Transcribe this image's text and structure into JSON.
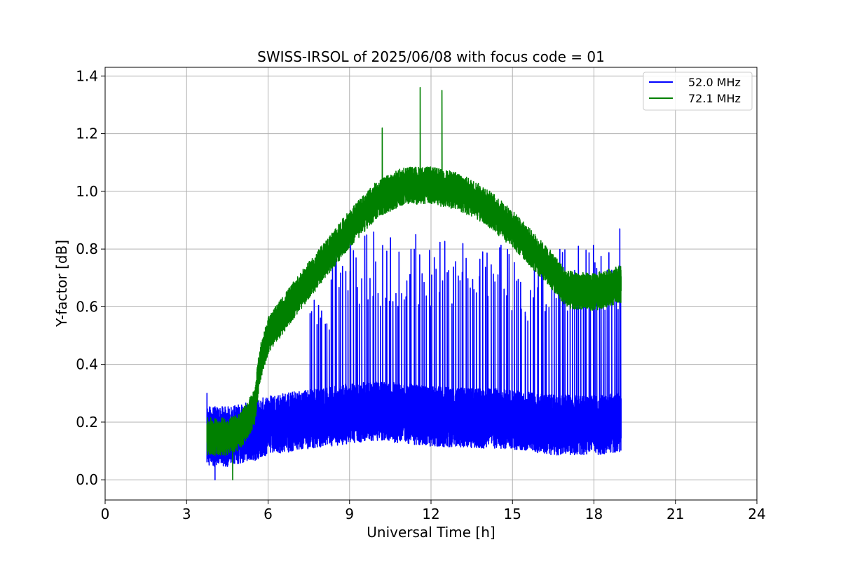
{
  "chart_data": {
    "type": "line",
    "title": "SWISS-IRSOL of 2025/06/08 with focus code = 01",
    "xlabel": "Universal Time [h]",
    "ylabel": "Y-factor [dB]",
    "xlim": [
      0,
      24
    ],
    "ylim": [
      -0.07,
      1.43
    ],
    "xticks": [
      0,
      3,
      6,
      9,
      12,
      15,
      18,
      21,
      24
    ],
    "xtick_labels": [
      "0",
      "3",
      "6",
      "9",
      "12",
      "15",
      "18",
      "21",
      "24"
    ],
    "yticks": [
      0.0,
      0.2,
      0.4,
      0.6,
      0.8,
      1.0,
      1.2,
      1.4
    ],
    "ytick_labels": [
      "0.0",
      "0.2",
      "0.4",
      "0.6",
      "0.8",
      "1.0",
      "1.2",
      "1.4"
    ],
    "grid": true,
    "legend_position": "top-right",
    "series": [
      {
        "name": "52.0 MHz",
        "color": "#0000ff",
        "x_start": 3.75,
        "x_end": 19.0,
        "base": [
          [
            3.75,
            0.15
          ],
          [
            4.5,
            0.15
          ],
          [
            5.5,
            0.17
          ],
          [
            6,
            0.19
          ],
          [
            7.5,
            0.21
          ],
          [
            9,
            0.23
          ],
          [
            10,
            0.24
          ],
          [
            12,
            0.22
          ],
          [
            15,
            0.21
          ],
          [
            16.5,
            0.19
          ],
          [
            18,
            0.19
          ],
          [
            19,
            0.2
          ]
        ],
        "noise": 0.08,
        "spikes": {
          "start": 7.5,
          "end": 19.0,
          "count": 150,
          "peak": [
            [
              7.5,
              0.55
            ],
            [
              8.5,
              0.72
            ],
            [
              10,
              0.8
            ],
            [
              12,
              0.78
            ],
            [
              14,
              0.78
            ],
            [
              15.5,
              0.72
            ],
            [
              17,
              0.75
            ],
            [
              19,
              0.78
            ]
          ]
        },
        "extreme_points": [
          [
            3.75,
            0.3
          ],
          [
            4.05,
            0.0
          ],
          [
            18.95,
            0.87
          ]
        ]
      },
      {
        "name": "72.1 MHz",
        "color": "#008000",
        "x_start": 3.75,
        "x_end": 19.0,
        "base": [
          [
            3.75,
            0.15
          ],
          [
            4.5,
            0.15
          ],
          [
            5,
            0.17
          ],
          [
            5.5,
            0.25
          ],
          [
            5.7,
            0.4
          ],
          [
            6,
            0.5
          ],
          [
            7,
            0.63
          ],
          [
            8,
            0.75
          ],
          [
            9,
            0.87
          ],
          [
            10,
            0.97
          ],
          [
            11,
            1.02
          ],
          [
            12,
            1.02
          ],
          [
            13,
            1.0
          ],
          [
            14,
            0.95
          ],
          [
            15,
            0.87
          ],
          [
            15.7,
            0.8
          ],
          [
            16.5,
            0.72
          ],
          [
            17,
            0.66
          ],
          [
            18,
            0.65
          ],
          [
            19,
            0.68
          ]
        ],
        "noise": 0.05,
        "extreme_points": [
          [
            11.6,
            1.36
          ],
          [
            12.4,
            1.35
          ],
          [
            10.2,
            1.22
          ],
          [
            4.7,
            0.0
          ]
        ]
      }
    ]
  }
}
